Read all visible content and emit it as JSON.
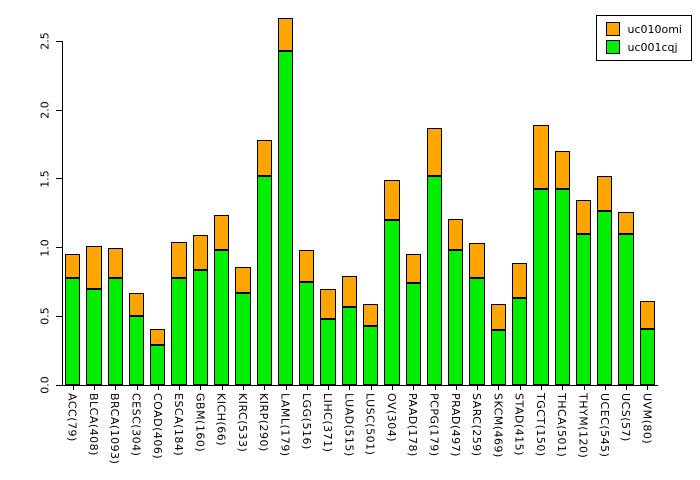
{
  "chart_data": {
    "type": "bar",
    "stacked": true,
    "title": "",
    "xlabel": "",
    "ylabel": "",
    "grid": false,
    "background_color": "#ffffff",
    "bar_border_color": "#000000",
    "ylim": [
      0,
      2.7
    ],
    "yticks": [
      "0.0",
      "0.5",
      "1.0",
      "1.5",
      "2.0",
      "2.5"
    ],
    "ytick_values": [
      0.0,
      0.5,
      1.0,
      1.5,
      2.0,
      2.5
    ],
    "axis_max_tick": 2.5,
    "categories": [
      "ACC(79)",
      "BLCA(408)",
      "BRCA(1093)",
      "CESC(304)",
      "COAD(406)",
      "ESCA(184)",
      "GBM(160)",
      "KICH(66)",
      "KIRC(533)",
      "KIRP(290)",
      "LAML(179)",
      "LGG(516)",
      "LIHC(371)",
      "LUAD(515)",
      "LUSC(501)",
      "OV(304)",
      "PAAD(178)",
      "PCPG(179)",
      "PRAD(497)",
      "SARC(259)",
      "SKCM(469)",
      "STAD(415)",
      "TGCT(150)",
      "THCA(501)",
      "THYM(120)",
      "UCEC(545)",
      "UCS(57)",
      "UVM(80)"
    ],
    "series": [
      {
        "name": "uc001cqj",
        "color": "#00EE00",
        "stack_position": "bottom",
        "values": [
          0.78,
          0.7,
          0.78,
          0.5,
          0.29,
          0.78,
          0.84,
          0.98,
          0.67,
          1.52,
          2.43,
          0.75,
          0.48,
          0.57,
          0.43,
          1.2,
          0.74,
          1.52,
          0.98,
          0.78,
          0.4,
          0.63,
          1.43,
          1.43,
          1.1,
          1.27,
          1.1,
          0.41
        ]
      },
      {
        "name": "uc010omi",
        "color": "#FFA500",
        "stack_position": "top",
        "values": [
          0.17,
          0.31,
          0.22,
          0.17,
          0.12,
          0.26,
          0.25,
          0.26,
          0.19,
          0.26,
          0.24,
          0.23,
          0.22,
          0.22,
          0.16,
          0.29,
          0.21,
          0.35,
          0.23,
          0.25,
          0.19,
          0.26,
          0.46,
          0.27,
          0.25,
          0.25,
          0.16,
          0.2
        ]
      }
    ],
    "totals": [
      0.95,
      1.01,
      1.0,
      0.67,
      0.41,
      1.04,
      1.09,
      1.24,
      0.86,
      1.78,
      2.67,
      0.98,
      0.7,
      0.79,
      0.59,
      1.49,
      0.95,
      1.87,
      1.21,
      1.03,
      0.59,
      0.89,
      1.89,
      1.7,
      1.35,
      1.52,
      1.26,
      0.61
    ],
    "legend": {
      "position": "top-right",
      "entries": [
        {
          "label": "uc010omi",
          "color": "#FFA500"
        },
        {
          "label": "uc001cqj",
          "color": "#00EE00"
        }
      ]
    }
  }
}
